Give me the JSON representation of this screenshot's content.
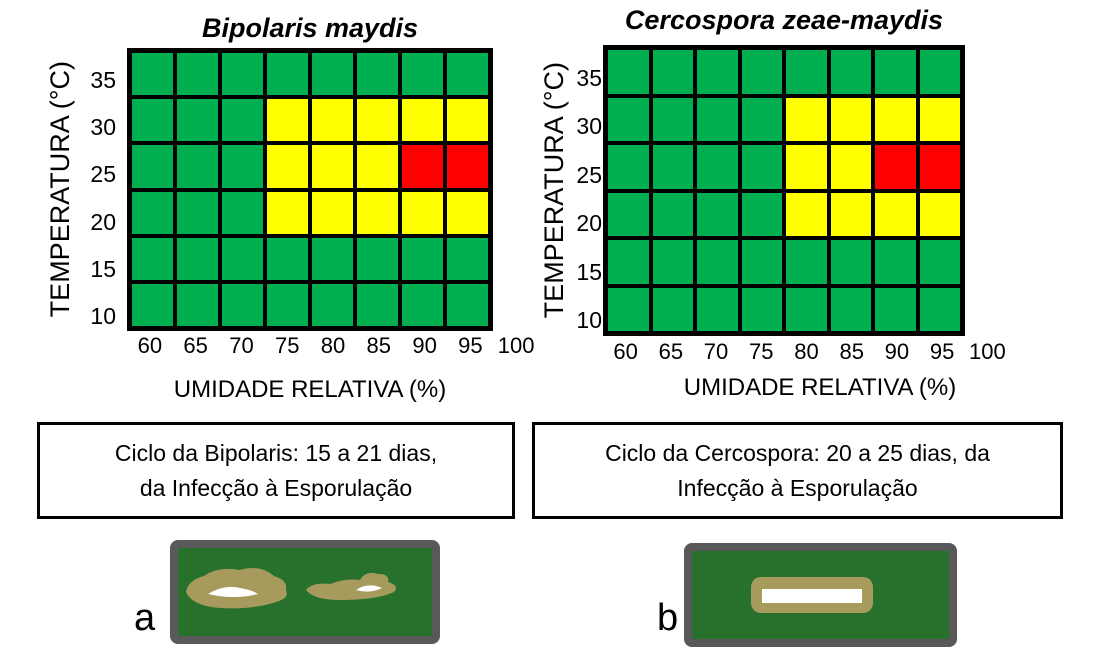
{
  "colors": {
    "green": "#00B050",
    "yellow": "#FFFF00",
    "red": "#FF0000",
    "grid": "#000000",
    "leaf_green": "#27712D",
    "leaf_border": "#595959",
    "lesion_tan": "#A69A5D",
    "lesion_center": "#FFFFFF"
  },
  "charts": [
    {
      "title": "Bipolaris maydis",
      "y_label": "TEMPERATURA (°C)",
      "x_label": "UMIDADE RELATIVA (%)",
      "y_ticks": [
        "35",
        "30",
        "25",
        "20",
        "15",
        "10"
      ],
      "x_ticks": [
        "60",
        "65",
        "70",
        "75",
        "80",
        "85",
        "90",
        "95",
        "100"
      ],
      "cells": [
        [
          "green",
          "green",
          "green",
          "green",
          "green",
          "green",
          "green",
          "green"
        ],
        [
          "green",
          "green",
          "green",
          "yellow",
          "yellow",
          "yellow",
          "yellow",
          "yellow"
        ],
        [
          "green",
          "green",
          "green",
          "yellow",
          "yellow",
          "yellow",
          "red",
          "red"
        ],
        [
          "green",
          "green",
          "green",
          "yellow",
          "yellow",
          "yellow",
          "yellow",
          "yellow"
        ],
        [
          "green",
          "green",
          "green",
          "green",
          "green",
          "green",
          "green",
          "green"
        ],
        [
          "green",
          "green",
          "green",
          "green",
          "green",
          "green",
          "green",
          "green"
        ]
      ]
    },
    {
      "title": "Cercospora zeae-maydis",
      "y_label": "TEMPERATURA (°C)",
      "x_label": "UMIDADE RELATIVA (%)",
      "y_ticks": [
        "35",
        "30",
        "25",
        "20",
        "15",
        "10"
      ],
      "x_ticks": [
        "60",
        "65",
        "70",
        "75",
        "80",
        "85",
        "90",
        "95",
        "100"
      ],
      "cells": [
        [
          "green",
          "green",
          "green",
          "green",
          "green",
          "green",
          "green",
          "green"
        ],
        [
          "green",
          "green",
          "green",
          "green",
          "yellow",
          "yellow",
          "yellow",
          "yellow"
        ],
        [
          "green",
          "green",
          "green",
          "green",
          "yellow",
          "yellow",
          "red",
          "red"
        ],
        [
          "green",
          "green",
          "green",
          "green",
          "yellow",
          "yellow",
          "yellow",
          "yellow"
        ],
        [
          "green",
          "green",
          "green",
          "green",
          "green",
          "green",
          "green",
          "green"
        ],
        [
          "green",
          "green",
          "green",
          "green",
          "green",
          "green",
          "green",
          "green"
        ]
      ]
    }
  ],
  "captions": [
    {
      "line1": "Ciclo da Bipolaris: 15 a 21 dias,",
      "line2": "da Infecção à Esporulação"
    },
    {
      "line1": "Ciclo da Cercospora: 20 a 25 dias, da",
      "line2": "Infecção à Esporulação"
    }
  ],
  "figures": [
    {
      "label": "a"
    },
    {
      "label": "b"
    }
  ],
  "chart_data": [
    {
      "type": "heatmap",
      "title": "Bipolaris maydis",
      "xlabel": "UMIDADE RELATIVA (%)",
      "ylabel": "TEMPERATURA (°C)",
      "x_ticks": [
        60,
        65,
        70,
        75,
        80,
        85,
        90,
        95,
        100
      ],
      "y_ticks_top_to_bottom": [
        35,
        30,
        25,
        20,
        15,
        10
      ],
      "cell_colors_top_to_bottom": [
        [
          "green",
          "green",
          "green",
          "green",
          "green",
          "green",
          "green",
          "green"
        ],
        [
          "green",
          "green",
          "green",
          "yellow",
          "yellow",
          "yellow",
          "yellow",
          "yellow"
        ],
        [
          "green",
          "green",
          "green",
          "yellow",
          "yellow",
          "yellow",
          "red",
          "red"
        ],
        [
          "green",
          "green",
          "green",
          "yellow",
          "yellow",
          "yellow",
          "yellow",
          "yellow"
        ],
        [
          "green",
          "green",
          "green",
          "green",
          "green",
          "green",
          "green",
          "green"
        ],
        [
          "green",
          "green",
          "green",
          "green",
          "green",
          "green",
          "green",
          "green"
        ]
      ],
      "grid": "on",
      "legend_position": "none"
    },
    {
      "type": "heatmap",
      "title": "Cercospora zeae-maydis",
      "xlabel": "UMIDADE RELATIVA (%)",
      "ylabel": "TEMPERATURA (°C)",
      "x_ticks": [
        60,
        65,
        70,
        75,
        80,
        85,
        90,
        95,
        100
      ],
      "y_ticks_top_to_bottom": [
        35,
        30,
        25,
        20,
        15,
        10
      ],
      "cell_colors_top_to_bottom": [
        [
          "green",
          "green",
          "green",
          "green",
          "green",
          "green",
          "green",
          "green"
        ],
        [
          "green",
          "green",
          "green",
          "green",
          "yellow",
          "yellow",
          "yellow",
          "yellow"
        ],
        [
          "green",
          "green",
          "green",
          "green",
          "yellow",
          "yellow",
          "red",
          "red"
        ],
        [
          "green",
          "green",
          "green",
          "green",
          "yellow",
          "yellow",
          "yellow",
          "yellow"
        ],
        [
          "green",
          "green",
          "green",
          "green",
          "green",
          "green",
          "green",
          "green"
        ],
        [
          "green",
          "green",
          "green",
          "green",
          "green",
          "green",
          "green",
          "green"
        ]
      ],
      "grid": "on",
      "legend_position": "none"
    }
  ]
}
